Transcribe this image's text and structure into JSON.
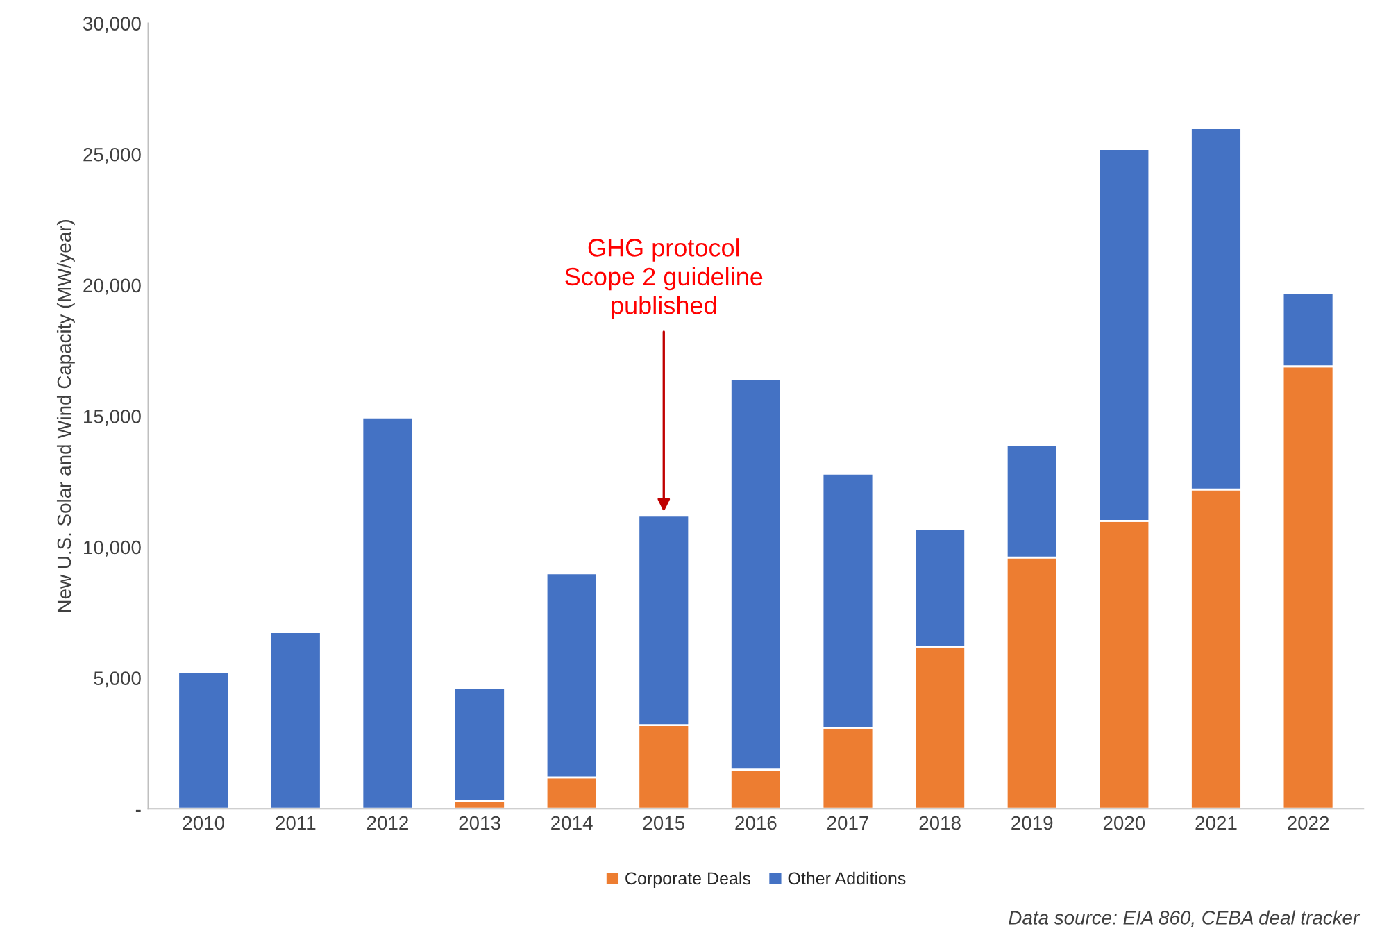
{
  "chart_data": {
    "type": "bar",
    "stacked": true,
    "ylabel": "New U.S. Solar and Wind Capacity (MW/year)",
    "categories": [
      "2010",
      "2011",
      "2012",
      "2013",
      "2014",
      "2015",
      "2016",
      "2017",
      "2018",
      "2019",
      "2020",
      "2021",
      "2022"
    ],
    "series": [
      {
        "name": "Corporate Deals",
        "color": "#ed7d31",
        "values": [
          null,
          null,
          null,
          300,
          1200,
          3200,
          1500,
          3100,
          6200,
          9600,
          11000,
          12200,
          16900
        ]
      },
      {
        "name": "Other Additions",
        "color": "#4472c4",
        "values": [
          5220,
          6750,
          14950,
          4300,
          7800,
          8000,
          14900,
          9700,
          4500,
          4300,
          14200,
          13800,
          2800
        ]
      }
    ],
    "ylim": [
      0,
      30000
    ],
    "yticks": [
      {
        "value": 0,
        "label": "-"
      },
      {
        "value": 5000,
        "label": "5,000"
      },
      {
        "value": 10000,
        "label": "10,000"
      },
      {
        "value": 15000,
        "label": "15,000"
      },
      {
        "value": 20000,
        "label": "20,000"
      },
      {
        "value": 25000,
        "label": "25,000"
      },
      {
        "value": 30000,
        "label": "30,000"
      }
    ],
    "grid": false,
    "legend": "bottom",
    "annotations": [
      {
        "text": "GHG protocol\nScope 2 guideline\npublished",
        "x": "2015",
        "y": 11200
      },
      "Data source: EIA 860, CEBA deal tracker"
    ]
  }
}
